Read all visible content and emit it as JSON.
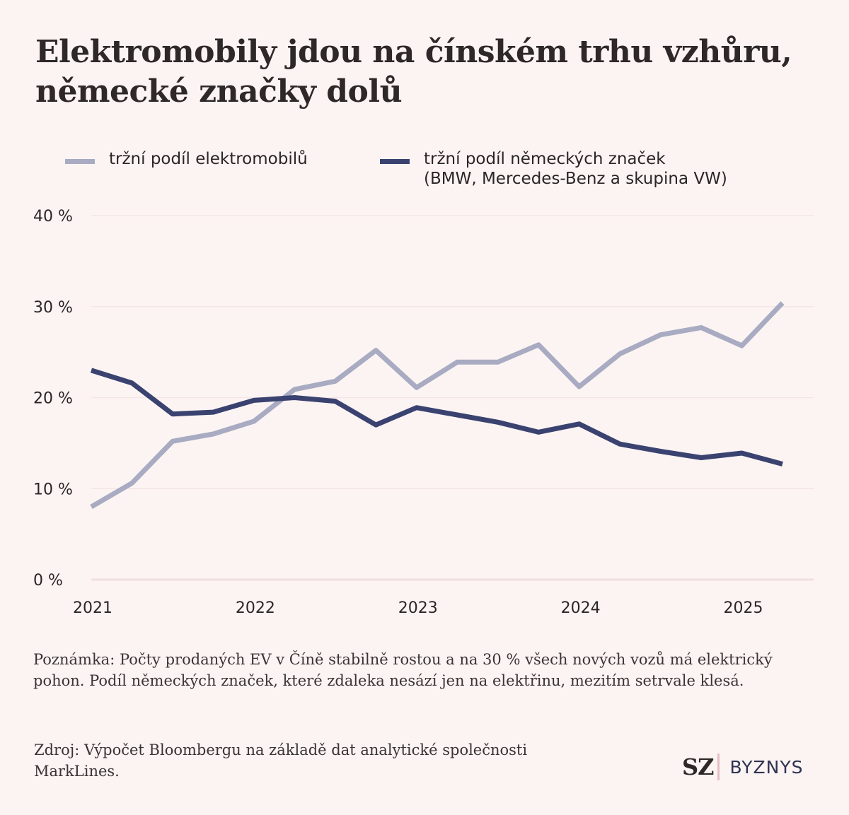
{
  "title": "Elektromobily jdou na čínském trhu vzhůru, německé značky dolů",
  "legend": [
    {
      "label": "tržní podíl elektromobilů",
      "color": "#a8abc1"
    },
    {
      "label": "tržní podíl německých značek\n(BMW, Mercedes-Benz a skupina VW)",
      "color": "#3a4270"
    }
  ],
  "note": "Poznámka: Počty prodaných EV v Číně stabilně rostou a na 30 % všech nových vozů má elektrický pohon. Podíl německých značek, které zdaleka nesází jen na elektřinu, mezitím setrvale klesá.",
  "source": "Zdroj: Výpočet Bloombergu na základě dat analytické společnosti MarkLines.",
  "logo": {
    "primary": "SZ",
    "secondary": "BYZNYS"
  },
  "chart_data": {
    "type": "line",
    "title": "Elektromobily jdou na čínském trhu vzhůru, německé značky dolů",
    "xlabel": "",
    "ylabel": "",
    "x": [
      "2021 Q1",
      "2021 Q2",
      "2021 Q3",
      "2021 Q4",
      "2022 Q1",
      "2022 Q2",
      "2022 Q3",
      "2022 Q4",
      "2023 Q1",
      "2023 Q2",
      "2023 Q3",
      "2023 Q4",
      "2024 Q1",
      "2024 Q2",
      "2024 Q3",
      "2024 Q4",
      "2025 Q1",
      "2025 Q2"
    ],
    "x_ticks": [
      "2021",
      "2022",
      "2023",
      "2024",
      "2025"
    ],
    "y_ticks": [
      "0 %",
      "10 %",
      "20 %",
      "30 %",
      "40 %"
    ],
    "y_tick_values": [
      0,
      10,
      20,
      30,
      40
    ],
    "ylim": [
      0,
      40
    ],
    "grid": true,
    "legend_position": "top",
    "series": [
      {
        "name": "tržní podíl elektromobilů",
        "color": "#a8abc1",
        "values": [
          8.0,
          10.6,
          15.2,
          16.0,
          17.4,
          20.9,
          21.8,
          25.2,
          21.1,
          23.9,
          23.9,
          25.8,
          21.2,
          24.8,
          26.9,
          27.7,
          25.7,
          30.4
        ]
      },
      {
        "name": "tržní podíl německých značek (BMW, Mercedes-Benz a skupina VW)",
        "color": "#3a4270",
        "values": [
          23.0,
          21.6,
          18.2,
          18.4,
          19.7,
          20.0,
          19.6,
          17.0,
          18.9,
          18.1,
          17.3,
          16.2,
          17.1,
          14.9,
          14.1,
          13.4,
          13.9,
          12.7
        ]
      }
    ]
  }
}
